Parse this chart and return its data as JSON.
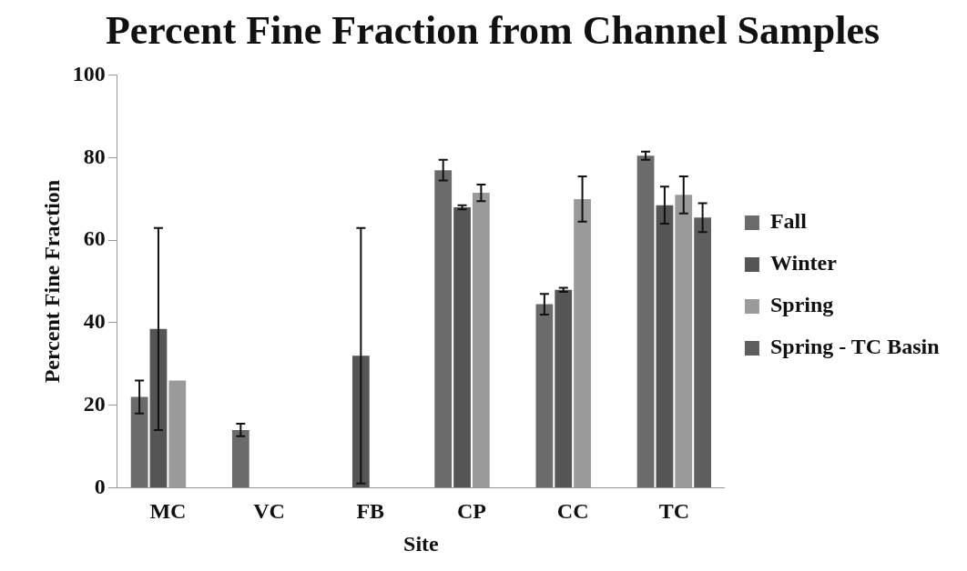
{
  "chart_data": {
    "type": "bar",
    "title": "Percent Fine Fraction from Channel Samples",
    "xlabel": "Site",
    "ylabel": "Percent Fine Fraction",
    "categories": [
      "MC",
      "VC",
      "FB",
      "CP",
      "CC",
      "TC"
    ],
    "series": [
      {
        "name": "Fall",
        "color": "#6b6b6b",
        "values": [
          22,
          14,
          null,
          77,
          44.5,
          80.5
        ],
        "errors": [
          4,
          1.5,
          null,
          2.5,
          2.5,
          1
        ]
      },
      {
        "name": "Winter",
        "color": "#555555",
        "values": [
          38.5,
          null,
          32,
          68,
          48,
          68.5
        ],
        "errors": [
          24.5,
          null,
          31,
          0.5,
          0.5,
          4.5
        ]
      },
      {
        "name": "Spring",
        "color": "#9a9a9a",
        "values": [
          26,
          null,
          null,
          71.5,
          70,
          71
        ],
        "errors": [
          null,
          null,
          null,
          2,
          5.5,
          4.5
        ]
      },
      {
        "name": "Spring - TC Basin",
        "color": "#5e5e5e",
        "values": [
          null,
          null,
          null,
          null,
          null,
          65.5
        ],
        "errors": [
          null,
          null,
          null,
          null,
          null,
          3.5
        ]
      }
    ],
    "ylim": [
      0,
      100
    ],
    "yticks": [
      0,
      20,
      40,
      60,
      80,
      100
    ],
    "grid": false,
    "legend": "right"
  }
}
